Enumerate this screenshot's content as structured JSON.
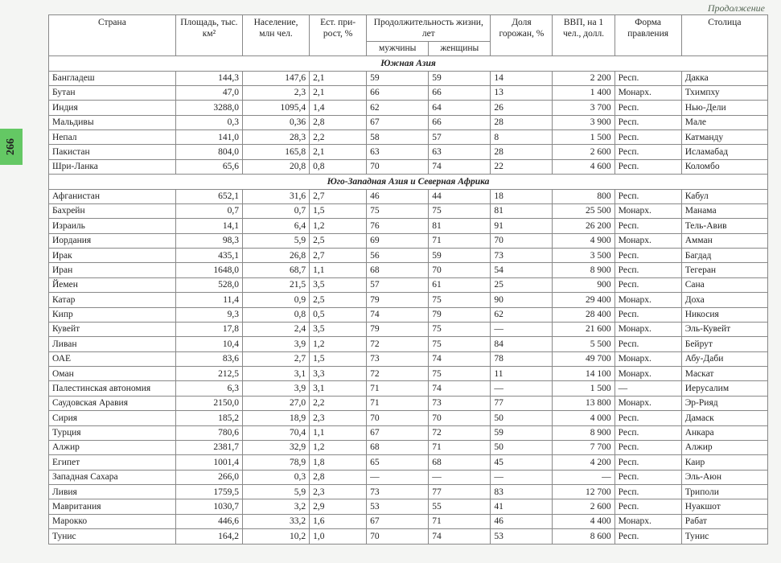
{
  "continuation": "Продолжение",
  "page_number": "266",
  "headers": {
    "country": "Страна",
    "area": "Площадь, тыс. км²",
    "population": "Население, млн чел.",
    "growth": "Ест. при-\nрост, %",
    "life": "Продолжительность жизни, лет",
    "men": "мужчины",
    "women": "женщины",
    "urban": "Доля горожан, %",
    "gdp": "ВВП, на 1 чел., долл.",
    "gov": "Форма правления",
    "capital": "Столица"
  },
  "sections": [
    {
      "title": "Южная Азия",
      "rows": [
        [
          "Бангладеш",
          "144,3",
          "147,6",
          "2,1",
          "59",
          "59",
          "14",
          "2 200",
          "Респ.",
          "Дакка"
        ],
        [
          "Бутан",
          "47,0",
          "2,3",
          "2,1",
          "66",
          "66",
          "13",
          "1 400",
          "Монарх.",
          "Тхимпху"
        ],
        [
          "Индия",
          "3288,0",
          "1095,4",
          "1,4",
          "62",
          "64",
          "26",
          "3 700",
          "Респ.",
          "Нью-Дели"
        ],
        [
          "Мальдивы",
          "0,3",
          "0,36",
          "2,8",
          "67",
          "66",
          "28",
          "3 900",
          "Респ.",
          "Мале"
        ],
        [
          "Непал",
          "141,0",
          "28,3",
          "2,2",
          "58",
          "57",
          "8",
          "1 500",
          "Респ.",
          "Катманду"
        ],
        [
          "Пакистан",
          "804,0",
          "165,8",
          "2,1",
          "63",
          "63",
          "28",
          "2 600",
          "Респ.",
          "Исламабад"
        ],
        [
          "Шри-Ланка",
          "65,6",
          "20,8",
          "0,8",
          "70",
          "74",
          "22",
          "4 600",
          "Респ.",
          "Коломбо"
        ]
      ]
    },
    {
      "title": "Юго-Западная Азия и Северная Африка",
      "rows": [
        [
          "Афганистан",
          "652,1",
          "31,6",
          "2,7",
          "46",
          "44",
          "18",
          "800",
          "Респ.",
          "Кабул"
        ],
        [
          "Бахрейн",
          "0,7",
          "0,7",
          "1,5",
          "75",
          "75",
          "81",
          "25 500",
          "Монарх.",
          "Манама"
        ],
        [
          "Израиль",
          "14,1",
          "6,4",
          "1,2",
          "76",
          "81",
          "91",
          "26 200",
          "Респ.",
          "Тель-Авив"
        ],
        [
          "Иордания",
          "98,3",
          "5,9",
          "2,5",
          "69",
          "71",
          "70",
          "4 900",
          "Монарх.",
          "Амман"
        ],
        [
          "Ирак",
          "435,1",
          "26,8",
          "2,7",
          "56",
          "59",
          "73",
          "3 500",
          "Респ.",
          "Багдад"
        ],
        [
          "Иран",
          "1648,0",
          "68,7",
          "1,1",
          "68",
          "70",
          "54",
          "8 900",
          "Респ.",
          "Тегеран"
        ],
        [
          "Йемен",
          "528,0",
          "21,5",
          "3,5",
          "57",
          "61",
          "25",
          "900",
          "Респ.",
          "Сана"
        ],
        [
          "Катар",
          "11,4",
          "0,9",
          "2,5",
          "79",
          "75",
          "90",
          "29 400",
          "Монарх.",
          "Доха"
        ],
        [
          "Кипр",
          "9,3",
          "0,8",
          "0,5",
          "74",
          "79",
          "62",
          "28 400",
          "Респ.",
          "Никосия"
        ],
        [
          "Кувейт",
          "17,8",
          "2,4",
          "3,5",
          "79",
          "75",
          "—",
          "21 600",
          "Монарх.",
          "Эль-Кувейт"
        ],
        [
          "Ливан",
          "10,4",
          "3,9",
          "1,2",
          "72",
          "75",
          "84",
          "5 500",
          "Респ.",
          "Бейрут"
        ],
        [
          "ОАЕ",
          "83,6",
          "2,7",
          "1,5",
          "73",
          "74",
          "78",
          "49 700",
          "Монарх.",
          "Абу-Даби"
        ],
        [
          "Оман",
          "212,5",
          "3,1",
          "3,3",
          "72",
          "75",
          "11",
          "14 100",
          "Монарх.",
          "Маскат"
        ],
        [
          "Палестинская автономия",
          "6,3",
          "3,9",
          "3,1",
          "71",
          "74",
          "—",
          "1 500",
          "—",
          "Иерусалим"
        ],
        [
          "Саудовская Аравия",
          "2150,0",
          "27,0",
          "2,2",
          "71",
          "73",
          "77",
          "13 800",
          "Монарх.",
          "Эр-Рияд"
        ],
        [
          "Сирия",
          "185,2",
          "18,9",
          "2,3",
          "70",
          "70",
          "50",
          "4 000",
          "Респ.",
          "Дамаск"
        ],
        [
          "Турция",
          "780,6",
          "70,4",
          "1,1",
          "67",
          "72",
          "59",
          "8 900",
          "Респ.",
          "Анкара"
        ],
        [
          "Алжир",
          "2381,7",
          "32,9",
          "1,2",
          "68",
          "71",
          "50",
          "7 700",
          "Респ.",
          "Алжир"
        ],
        [
          "Египет",
          "1001,4",
          "78,9",
          "1,8",
          "65",
          "68",
          "45",
          "4 200",
          "Респ.",
          "Каир"
        ],
        [
          "Западная Сахара",
          "266,0",
          "0,3",
          "2,8",
          "—",
          "—",
          "—",
          "—",
          "Респ.",
          "Эль-Аюн"
        ],
        [
          "Ливия",
          "1759,5",
          "5,9",
          "2,3",
          "73",
          "77",
          "83",
          "12 700",
          "Респ.",
          "Триполи"
        ],
        [
          "Мавритания",
          "1030,7",
          "3,2",
          "2,9",
          "53",
          "55",
          "41",
          "2 600",
          "Респ.",
          "Нуакшот"
        ],
        [
          "Марокко",
          "446,6",
          "33,2",
          "1,6",
          "67",
          "71",
          "46",
          "4 400",
          "Монарх.",
          "Рабат"
        ],
        [
          "Тунис",
          "164,2",
          "10,2",
          "1,0",
          "70",
          "74",
          "53",
          "8 600",
          "Респ.",
          "Тунис"
        ]
      ]
    }
  ]
}
